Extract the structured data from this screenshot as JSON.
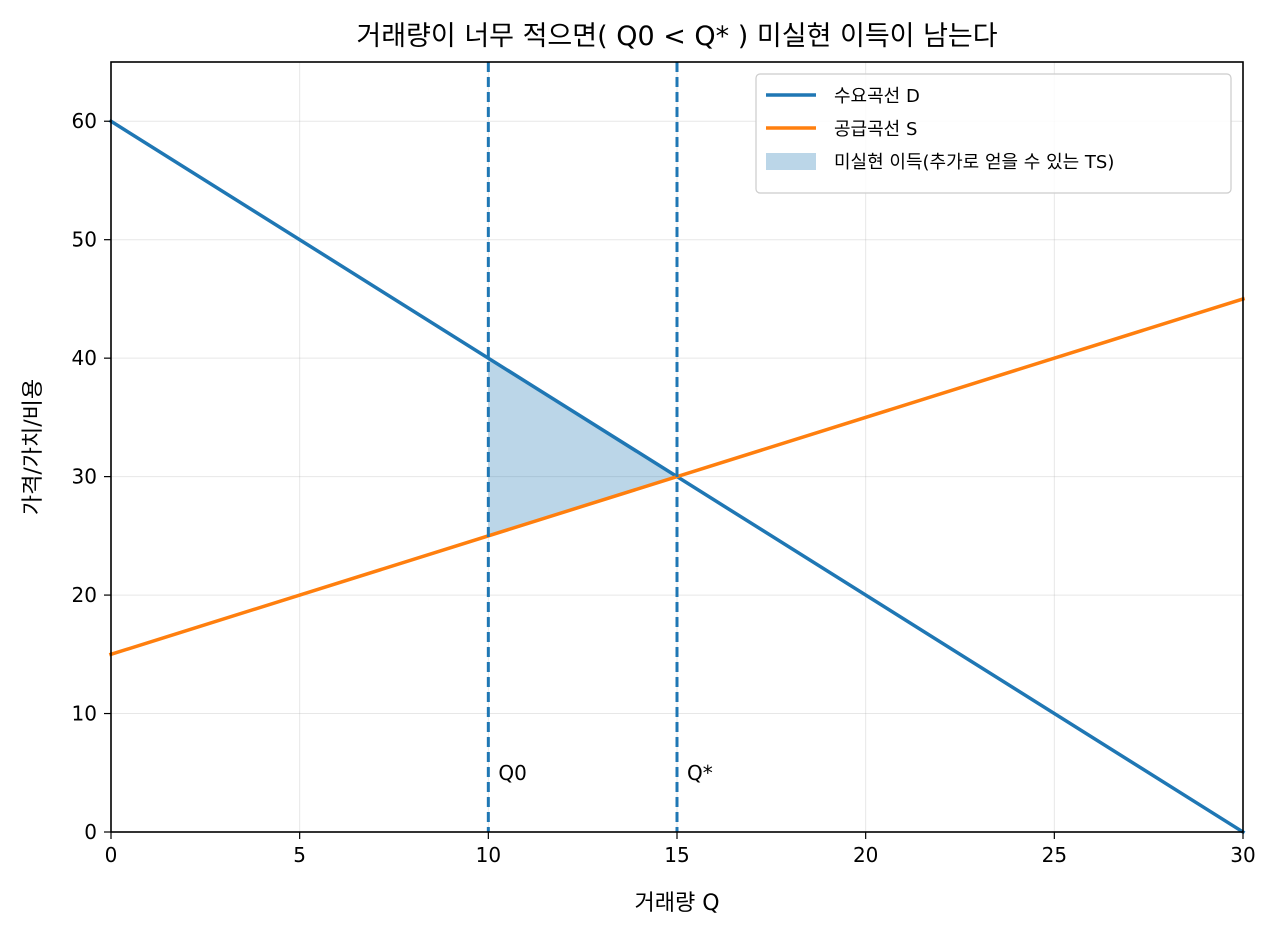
{
  "chart_data": {
    "type": "line",
    "title": "거래량이 너무 적으면( Q0 < Q* ) 미실현 이득이 남는다",
    "xlabel": "거래량 Q",
    "ylabel": "가격/가치/비용",
    "xlim": [
      0,
      30
    ],
    "ylim": [
      0,
      65
    ],
    "x_ticks": [
      0,
      5,
      10,
      15,
      20,
      25,
      30
    ],
    "y_ticks": [
      0,
      10,
      20,
      30,
      40,
      50,
      60
    ],
    "grid": true,
    "legend_position": "top-right",
    "series": [
      {
        "name": "수요곡선 D",
        "color": "#1f77b4",
        "x": [
          0,
          30
        ],
        "y": [
          60,
          0
        ]
      },
      {
        "name": "공급곡선 S",
        "color": "#ff7f0e",
        "x": [
          0,
          30
        ],
        "y": [
          15,
          45
        ]
      }
    ],
    "shaded_region": {
      "name": "미실현 이득(추가로 얻을 수 있는 TS)",
      "color": "#1f77b4",
      "opacity": 0.3,
      "x_from": 10,
      "x_to": 15,
      "upper": "수요곡선 D",
      "lower": "공급곡선 S"
    },
    "vertical_lines": [
      {
        "x": 10,
        "label": "Q0",
        "color": "#1f77b4"
      },
      {
        "x": 15,
        "label": "Q*",
        "color": "#1f77b4"
      }
    ]
  }
}
